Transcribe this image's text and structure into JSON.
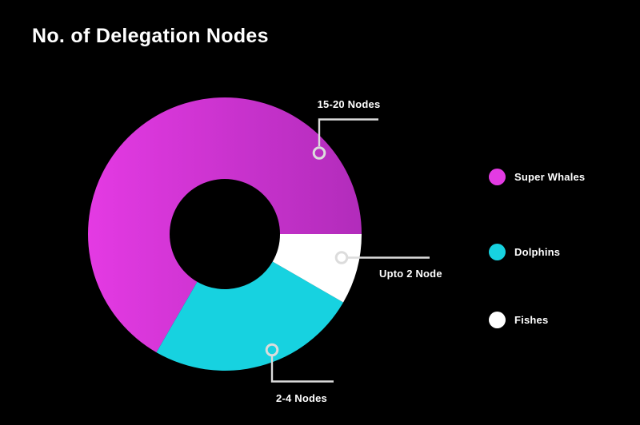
{
  "title": "No. of Delegation Nodes",
  "chart_data": {
    "type": "pie",
    "subtype": "donut",
    "title": "No. of Delegation Nodes",
    "background": "#000000",
    "legend_position": "right",
    "categories": [
      "Super Whales",
      "Dolphins",
      "Fishes"
    ],
    "values_percent": [
      66.7,
      25.0,
      8.3
    ],
    "segments": [
      {
        "label": "Super Whales",
        "callout": "15-20 Nodes",
        "percent": 66.7,
        "arc_deg": 240,
        "start_deg": 120,
        "end_deg": 360,
        "color_start": "#E43AE3",
        "color_end": "#B22CBB"
      },
      {
        "label": "Dolphins",
        "callout": "2-4 Nodes",
        "percent": 25.0,
        "arc_deg": 90,
        "start_deg": 30,
        "end_deg": 120,
        "color": "#17D2E0"
      },
      {
        "label": "Fishes",
        "callout": "Upto 2 Node",
        "percent": 8.3,
        "arc_deg": 30,
        "start_deg": 0,
        "end_deg": 30,
        "color": "#FFFFFF"
      }
    ]
  },
  "legend": {
    "items": [
      {
        "label": "Super Whales",
        "color": "#E33BE3"
      },
      {
        "label": "Dolphins",
        "color": "#17D2E0"
      },
      {
        "label": "Fishes",
        "color": "#FFFFFF"
      }
    ]
  },
  "colors": {
    "background": "#000000",
    "text": "#FFFFFF",
    "connector": "#DCDCDC"
  }
}
